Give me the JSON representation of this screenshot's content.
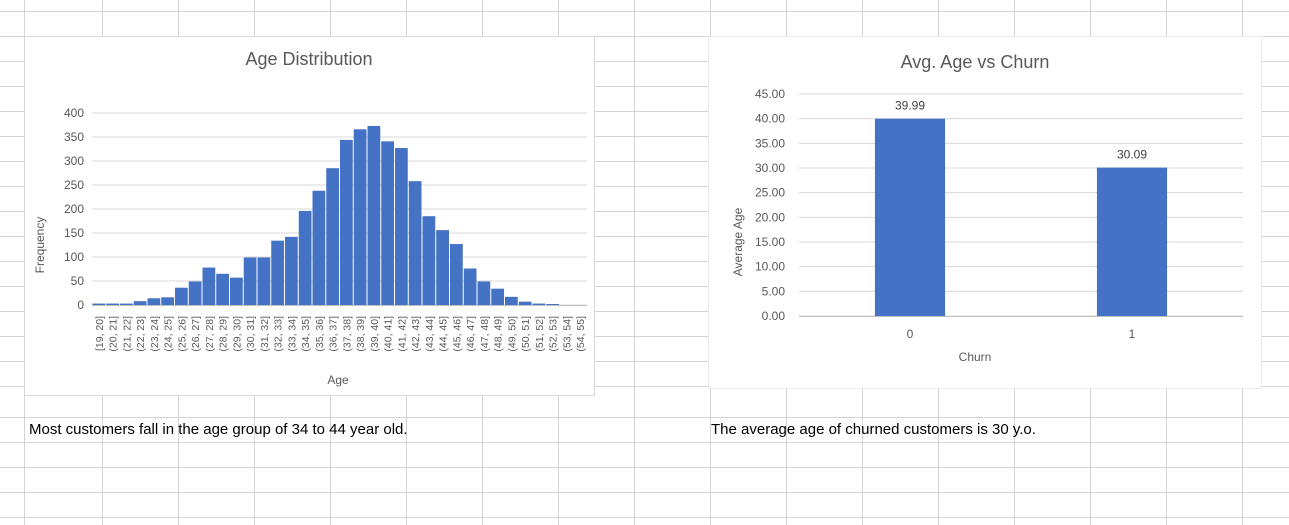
{
  "colors": {
    "bar": "#4472c4",
    "axis_text": "#595959",
    "title_text": "#595959",
    "gridline": "#d9d9d9",
    "cell_grid": "#d4d4d4"
  },
  "chart_data": [
    {
      "type": "bar",
      "title": "Age Distribution",
      "xlabel": "Age",
      "ylabel": "Frequency",
      "ylim": [
        0,
        400
      ],
      "yticks": [
        "0",
        "50",
        "100",
        "150",
        "200",
        "250",
        "300",
        "350",
        "400"
      ],
      "grid": true,
      "categories": [
        "[19, 20]",
        "(20, 21]",
        "(21, 22]",
        "(22, 23]",
        "(23, 24]",
        "(24, 25]",
        "(25, 26]",
        "(26, 27]",
        "(27, 28]",
        "(28, 29]",
        "(29, 30]",
        "(30, 31]",
        "(31, 32]",
        "(32, 33]",
        "(33, 34]",
        "(34, 35]",
        "(35, 36]",
        "(36, 37]",
        "(37, 38]",
        "(38, 39]",
        "(39, 40]",
        "(40, 41]",
        "(41, 42]",
        "(42, 43]",
        "(43, 44]",
        "(44, 45]",
        "(45, 46]",
        "(46, 47]",
        "(47, 48]",
        "(48, 49]",
        "(49, 50]",
        "(50, 51]",
        "(51, 52]",
        "(52, 53]",
        "(53, 54]",
        "(54, 55]"
      ],
      "values": [
        3,
        3,
        3,
        8,
        14,
        16,
        36,
        49,
        78,
        65,
        57,
        99,
        99,
        134,
        142,
        196,
        238,
        285,
        344,
        366,
        373,
        341,
        327,
        258,
        185,
        156,
        127,
        76,
        49,
        34,
        17,
        7,
        3,
        2,
        0,
        0
      ]
    },
    {
      "type": "bar",
      "title": "Avg. Age vs Churn",
      "xlabel": "Churn",
      "ylabel": "Average Age",
      "ylim": [
        0,
        45
      ],
      "yticks": [
        "0.00",
        "5.00",
        "10.00",
        "15.00",
        "20.00",
        "25.00",
        "30.00",
        "35.00",
        "40.00",
        "45.00"
      ],
      "grid": true,
      "categories": [
        "0",
        "1"
      ],
      "values": [
        39.99,
        30.09
      ],
      "data_labels": [
        "39.99",
        "30.09"
      ]
    }
  ],
  "notes": {
    "left": "Most customers fall in the age group of 34 to 44 year old.",
    "right": "The average age of churned customers is 30 y.o."
  }
}
